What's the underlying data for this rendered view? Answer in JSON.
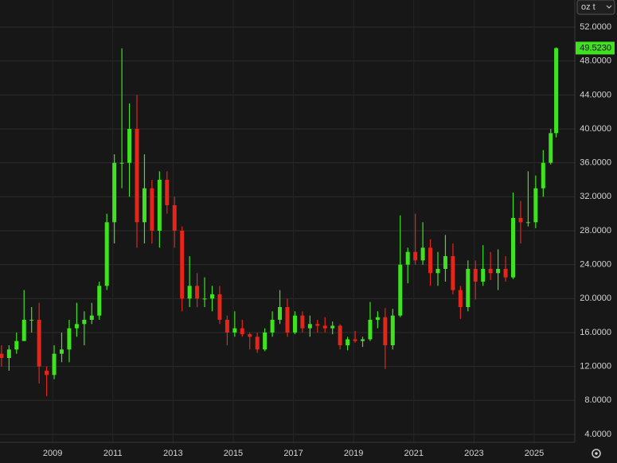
{
  "chart_data": {
    "type": "candlestick",
    "unit": "oz t",
    "up_color": "#3ee21f",
    "down_color": "#e5251a",
    "grid": true,
    "xlim": [
      2007.25,
      2026.35
    ],
    "xticks": [
      2009,
      2011,
      2013,
      2015,
      2017,
      2019,
      2021,
      2023,
      2025
    ],
    "ylim": [
      3.06,
      55.19
    ],
    "yticks": [
      {
        "value": 4,
        "label": "4.0000"
      },
      {
        "value": 8,
        "label": "8.0000"
      },
      {
        "value": 12,
        "label": "12.0000"
      },
      {
        "value": 16,
        "label": "16.0000"
      },
      {
        "value": 20,
        "label": "20.0000"
      },
      {
        "value": 24,
        "label": "24.0000"
      },
      {
        "value": 28,
        "label": "28.0000"
      },
      {
        "value": 32,
        "label": "32.0000"
      },
      {
        "value": 36,
        "label": "36.0000"
      },
      {
        "value": 40,
        "label": "40.0000"
      },
      {
        "value": 44,
        "label": "44.0000"
      },
      {
        "value": 48,
        "label": "48.0000"
      },
      {
        "value": 52,
        "label": "52.0000"
      }
    ],
    "last_price": {
      "value": 49.523,
      "label": "49.5230"
    },
    "x": [
      2007.3,
      2007.55,
      2007.8,
      2008.05,
      2008.3,
      2008.55,
      2008.8,
      2009.05,
      2009.3,
      2009.55,
      2009.8,
      2010.05,
      2010.3,
      2010.55,
      2010.8,
      2011.05,
      2011.3,
      2011.55,
      2011.8,
      2012.05,
      2012.3,
      2012.55,
      2012.8,
      2013.05,
      2013.3,
      2013.55,
      2013.8,
      2014.05,
      2014.3,
      2014.55,
      2014.8,
      2015.05,
      2015.3,
      2015.55,
      2015.8,
      2016.05,
      2016.3,
      2016.55,
      2016.8,
      2017.05,
      2017.3,
      2017.55,
      2017.8,
      2018.05,
      2018.3,
      2018.55,
      2018.8,
      2019.05,
      2019.3,
      2019.55,
      2019.8,
      2020.05,
      2020.3,
      2020.55,
      2020.8,
      2021.05,
      2021.3,
      2021.55,
      2021.8,
      2022.05,
      2022.3,
      2022.55,
      2022.8,
      2023.05,
      2023.3,
      2023.55,
      2023.8,
      2024.05,
      2024.3,
      2024.55,
      2024.8,
      2025.05,
      2025.3,
      2025.55,
      2025.73
    ],
    "open": [
      13.5,
      13,
      14,
      15,
      17.5,
      17.5,
      11.5,
      11,
      13.5,
      14,
      16.5,
      17,
      17.5,
      18,
      21.5,
      29,
      36,
      36,
      40,
      29,
      33,
      28,
      34,
      31,
      28,
      20,
      21.5,
      20,
      20,
      20.5,
      17.5,
      16,
      16.5,
      15.8,
      15.5,
      14,
      16,
      17.5,
      19,
      16,
      18,
      16.5,
      17,
      16.8,
      16.5,
      16.8,
      14.5,
      15.2,
      15,
      15.2,
      17.5,
      17.8,
      14.5,
      18,
      24,
      25.5,
      24.5,
      26,
      23,
      23.5,
      25,
      21,
      19,
      23.5,
      22,
      23.5,
      23,
      23.5,
      22.5,
      29.5,
      29,
      29,
      33,
      36,
      39.5
    ],
    "high": [
      14.5,
      14.5,
      16,
      21,
      19,
      19.5,
      12,
      14.5,
      16,
      17.5,
      19.5,
      18.5,
      19.5,
      22,
      30,
      37,
      49.5,
      43,
      44,
      37,
      34,
      35,
      35,
      32,
      28.5,
      25,
      23,
      22.5,
      21.5,
      21.5,
      18,
      18.5,
      17.5,
      16,
      16,
      16.5,
      18.5,
      21,
      20,
      18.5,
      18.5,
      18,
      17.5,
      17.8,
      17.3,
      17,
      15.5,
      16.2,
      15.5,
      19.6,
      18.5,
      18.9,
      18.8,
      29.8,
      26,
      30,
      29,
      27,
      25.5,
      27.5,
      26.5,
      21.5,
      24.5,
      24.5,
      26.3,
      25.5,
      25.8,
      25,
      32.5,
      31.5,
      35,
      34.5,
      37.5,
      40,
      49.6
    ],
    "low": [
      12,
      11.5,
      13.5,
      15,
      16,
      10,
      8.5,
      10.5,
      12.5,
      12.5,
      15.5,
      14.5,
      17,
      17.5,
      21,
      26.5,
      33,
      32,
      26,
      26.5,
      26.5,
      26,
      30,
      26,
      18.5,
      19,
      19,
      19,
      18.5,
      17,
      14.5,
      15.5,
      15.5,
      14,
      13.6,
      13.8,
      15.5,
      17,
      15.5,
      15.8,
      16,
      15.5,
      16,
      16,
      15.8,
      14,
      13.9,
      14.8,
      14.3,
      15,
      16.5,
      11.7,
      14,
      17.8,
      21.8,
      24,
      24,
      21.5,
      21.5,
      22,
      20.5,
      17.6,
      18.5,
      19.9,
      21.5,
      22.2,
      21,
      22,
      22.3,
      26.5,
      28.5,
      28.3,
      32,
      35.8,
      39
    ],
    "close": [
      13,
      14,
      15,
      17.5,
      17.5,
      12,
      11,
      13.5,
      14,
      16.5,
      17,
      17.5,
      18,
      21.5,
      29,
      36,
      36,
      40,
      29,
      33,
      28,
      34,
      31,
      28,
      20,
      21.5,
      20,
      20,
      20.5,
      17.5,
      16,
      16.5,
      15.8,
      15.5,
      14,
      16,
      17.5,
      19,
      16,
      18,
      16.5,
      17,
      16.8,
      16.5,
      16.8,
      14.5,
      15.2,
      15,
      15.2,
      17.5,
      17.8,
      14.5,
      18,
      24,
      25.5,
      24.5,
      26,
      23,
      23.5,
      25,
      21,
      19,
      23.5,
      22,
      23.5,
      23,
      23.5,
      22.5,
      29.5,
      29,
      29,
      33,
      36,
      39.5,
      49.52
    ]
  }
}
